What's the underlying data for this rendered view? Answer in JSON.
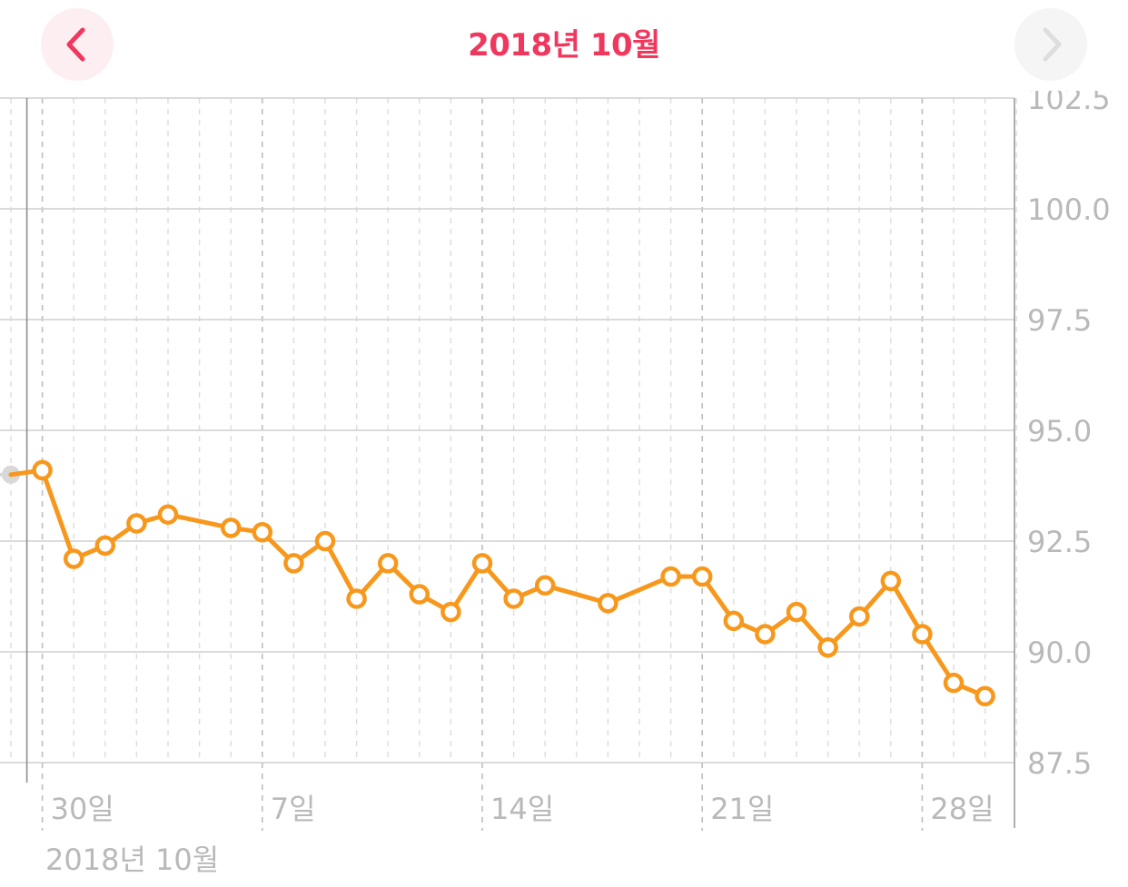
{
  "header": {
    "title": "2018년 10월",
    "prev_icon": "chevron-left-icon",
    "next_icon": "chevron-right-icon"
  },
  "month_caption": "2018년 10월",
  "colors": {
    "accent": "#f0385e",
    "series": "#f7981d",
    "grid": "#cfcfcf",
    "tick": "#b9b9b9",
    "previous_point": "#d8d8d8"
  },
  "chart_data": {
    "type": "line",
    "title": "",
    "xlabel": "",
    "ylabel": "",
    "x_start": "2018-09-29",
    "x_end": "2018-10-31",
    "ylim": [
      87.5,
      102.5
    ],
    "yticks": [
      "102.5",
      "100.0",
      "97.5",
      "95.0",
      "92.5",
      "90.0",
      "87.5"
    ],
    "xticks": [
      {
        "date": "2018-09-30",
        "label": "30일"
      },
      {
        "date": "2018-10-07",
        "label": "7일"
      },
      {
        "date": "2018-10-14",
        "label": "14일"
      },
      {
        "date": "2018-10-21",
        "label": "21일"
      },
      {
        "date": "2018-10-28",
        "label": "28일"
      }
    ],
    "grid": true,
    "y_axis_position": "right",
    "previous_point": {
      "date": "2018-09-29",
      "value": 94.0
    },
    "series": [
      {
        "points": [
          {
            "date": "2018-09-30",
            "value": 94.1
          },
          {
            "date": "2018-10-01",
            "value": 92.1
          },
          {
            "date": "2018-10-02",
            "value": 92.4
          },
          {
            "date": "2018-10-03",
            "value": 92.9
          },
          {
            "date": "2018-10-04",
            "value": 93.1
          },
          {
            "date": "2018-10-06",
            "value": 92.8
          },
          {
            "date": "2018-10-07",
            "value": 92.7
          },
          {
            "date": "2018-10-08",
            "value": 92.0
          },
          {
            "date": "2018-10-09",
            "value": 92.5
          },
          {
            "date": "2018-10-10",
            "value": 91.2
          },
          {
            "date": "2018-10-11",
            "value": 92.0
          },
          {
            "date": "2018-10-12",
            "value": 91.3
          },
          {
            "date": "2018-10-13",
            "value": 90.9
          },
          {
            "date": "2018-10-14",
            "value": 92.0
          },
          {
            "date": "2018-10-15",
            "value": 91.2
          },
          {
            "date": "2018-10-16",
            "value": 91.5
          },
          {
            "date": "2018-10-18",
            "value": 91.1
          },
          {
            "date": "2018-10-20",
            "value": 91.7
          },
          {
            "date": "2018-10-21",
            "value": 91.7
          },
          {
            "date": "2018-10-22",
            "value": 90.7
          },
          {
            "date": "2018-10-23",
            "value": 90.4
          },
          {
            "date": "2018-10-24",
            "value": 90.9
          },
          {
            "date": "2018-10-25",
            "value": 90.1
          },
          {
            "date": "2018-10-26",
            "value": 90.8
          },
          {
            "date": "2018-10-27",
            "value": 91.6
          },
          {
            "date": "2018-10-28",
            "value": 90.4
          },
          {
            "date": "2018-10-29",
            "value": 89.3
          },
          {
            "date": "2018-10-30",
            "value": 89.0
          }
        ]
      }
    ]
  }
}
